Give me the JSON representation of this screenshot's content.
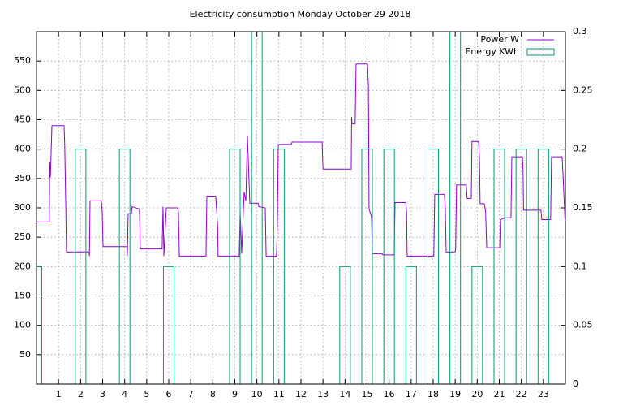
{
  "chart_data": {
    "type": "line",
    "title": "Electricity consumption Monday October 29 2018",
    "xlim": [
      0,
      24
    ],
    "xticks": [
      1,
      2,
      3,
      4,
      5,
      6,
      7,
      8,
      9,
      10,
      11,
      12,
      13,
      14,
      15,
      16,
      17,
      18,
      19,
      20,
      21,
      22,
      23
    ],
    "ylim": [
      0,
      600
    ],
    "yticks": [
      50,
      100,
      150,
      200,
      250,
      300,
      350,
      400,
      450,
      500,
      550
    ],
    "y2lim": [
      0,
      0.3
    ],
    "y2ticks": [
      0,
      0.05,
      0.1,
      0.15,
      0.2,
      0.25,
      0.3
    ],
    "grid": true,
    "legend": "top-right",
    "series": [
      {
        "name": "Power W",
        "color": "#9400d3",
        "x": [
          0,
          0.58,
          0.6,
          0.63,
          0.7,
          1.25,
          1.28,
          1.33,
          1.36,
          2.38,
          2.4,
          2.43,
          2.94,
          2.98,
          3.02,
          4.1,
          4.12,
          4.16,
          4.3,
          4.34,
          4.67,
          4.71,
          5.7,
          5.74,
          5.78,
          5.89,
          6.4,
          6.44,
          6.48,
          7.69,
          7.73,
          8.13,
          8.17,
          8.22,
          8.24,
          9.2,
          9.24,
          9.31,
          9.42,
          9.5,
          9.57,
          9.68,
          10.05,
          10.09,
          10.38,
          10.42,
          10.89,
          10.93,
          10.97,
          11.56,
          11.6,
          12.96,
          13.0,
          14.28,
          14.3,
          14.32,
          14.46,
          14.5,
          15.02,
          15.06,
          15.09,
          15.2,
          15.24,
          15.68,
          15.72,
          16.23,
          16.27,
          16.75,
          16.79,
          16.82,
          18.03,
          18.07,
          18.51,
          18.55,
          18.59,
          18.99,
          19.02,
          19.06,
          19.5,
          19.54,
          19.73,
          19.76,
          20.06,
          20.1,
          20.13,
          20.32,
          20.38,
          20.43,
          21.02,
          21.05,
          21.27,
          21.53,
          21.57,
          22.05,
          22.08,
          22.1,
          22.89,
          22.93,
          23.33,
          23.37,
          23.85,
          23.9,
          23.98
        ],
        "values": [
          276,
          276,
          378,
          352,
          440,
          440,
          408,
          298,
          225,
          225,
          218,
          312,
          312,
          295,
          234,
          234,
          218,
          290,
          290,
          302,
          298,
          230,
          230,
          302,
          218,
          300,
          300,
          293,
          218,
          218,
          320,
          320,
          298,
          270,
          218,
          218,
          293,
          222,
          327,
          312,
          422,
          308,
          308,
          302,
          300,
          218,
          218,
          270,
          408,
          408,
          412,
          412,
          366,
          366,
          455,
          443,
          443,
          545,
          545,
          507,
          298,
          285,
          222,
          222,
          220,
          220,
          309,
          309,
          295,
          218,
          218,
          323,
          323,
          298,
          225,
          225,
          230,
          339,
          339,
          316,
          316,
          413,
          413,
          385,
          307,
          307,
          293,
          232,
          232,
          280,
          283,
          283,
          387,
          387,
          362,
          296,
          296,
          280,
          280,
          387,
          387,
          350,
          280
        ]
      },
      {
        "name": "Energy KWh",
        "color": "#009e73",
        "type": "bar",
        "axis": "y2",
        "x": [
          0,
          1,
          2,
          3,
          4,
          5,
          6,
          7,
          8,
          9,
          10,
          11,
          12,
          13,
          14,
          15,
          16,
          17,
          18,
          19,
          20,
          21,
          22,
          23
        ],
        "values": [
          0.1,
          0,
          0.2,
          0,
          0.2,
          0,
          0.1,
          0,
          0,
          0.2,
          0.3,
          0.2,
          0,
          0,
          0.1,
          0.2,
          0.2,
          0.1,
          0.2,
          0.3,
          0.1,
          0.2,
          0.2,
          0.2
        ]
      }
    ]
  }
}
